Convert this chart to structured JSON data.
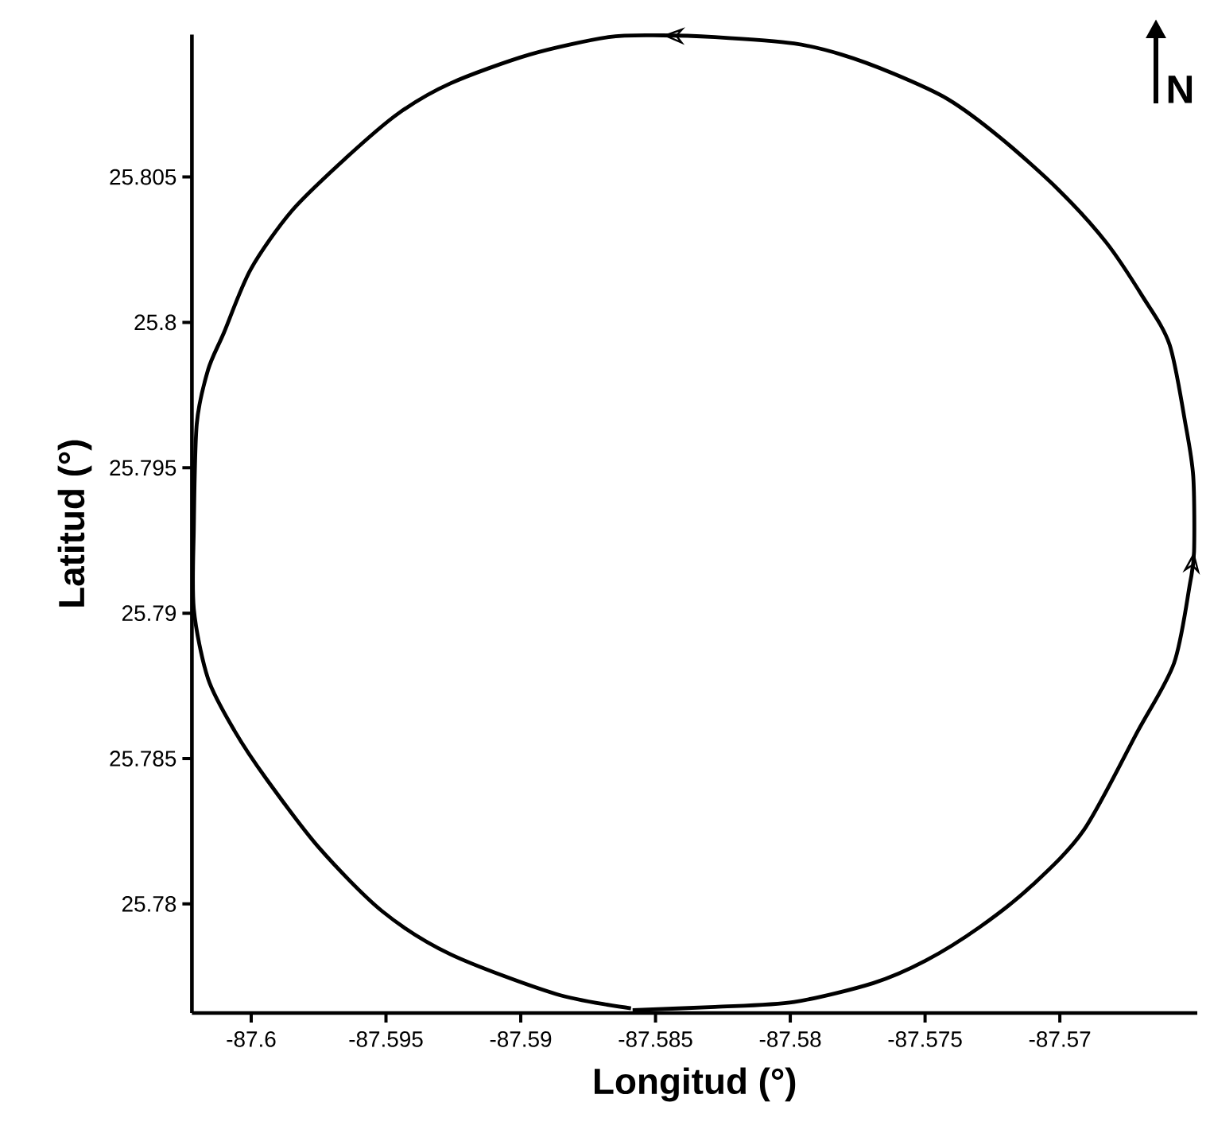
{
  "chart_data": {
    "type": "line",
    "xlabel": "Longitud (°)",
    "ylabel": "Latitud (°)",
    "annotations": [
      "N"
    ],
    "x": [
      -87.58585,
      -87.5828,
      -87.57986,
      -87.57692,
      -87.57498,
      -87.57298,
      -87.57104,
      -87.56911,
      -87.56711,
      -87.56576,
      -87.56517,
      -87.56502,
      -87.56505,
      -87.56534,
      -87.56593,
      -87.56693,
      -87.56828,
      -87.57005,
      -87.57222,
      -87.57416,
      -87.57616,
      -87.5781,
      -87.57986,
      -87.5828,
      -87.58474,
      -87.58674,
      -87.58967,
      -87.59261,
      -87.59455,
      -87.59649,
      -87.59849,
      -87.60002,
      -87.60102,
      -87.6016,
      -87.60202,
      -87.60213,
      -87.60213,
      -87.6016,
      -87.60061,
      -87.59943,
      -87.59749,
      -87.59514,
      -87.59261,
      -87.58868,
      -87.58591
    ],
    "series": [
      {
        "color": "#000000",
        "values": [
          25.77635,
          25.77646,
          25.77663,
          25.77728,
          25.77805,
          25.7792,
          25.78063,
          25.78254,
          25.78594,
          25.78829,
          25.79103,
          25.79212,
          25.7947,
          25.79651,
          25.79924,
          25.80089,
          25.80275,
          25.80456,
          25.80636,
          25.80768,
          25.80855,
          25.80921,
          25.80959,
          25.80981,
          25.80987,
          25.80981,
          25.80921,
          25.80822,
          25.80718,
          25.80565,
          25.80384,
          25.80182,
          25.79963,
          25.79837,
          25.79651,
          25.79289,
          25.79015,
          25.78774,
          25.78594,
          25.78429,
          25.78194,
          25.77975,
          25.77827,
          25.7769,
          25.77641
        ]
      }
    ],
    "xlim": [
      -87.6022,
      -87.5649
    ],
    "ylim": [
      25.77625,
      25.8099
    ],
    "xticks": [
      -87.6,
      -87.595,
      -87.59,
      -87.585,
      -87.58,
      -87.575,
      -87.57
    ],
    "yticks": [
      25.78,
      25.785,
      25.79,
      25.795,
      25.8,
      25.805
    ],
    "marker": "none",
    "line_style": "solid"
  }
}
